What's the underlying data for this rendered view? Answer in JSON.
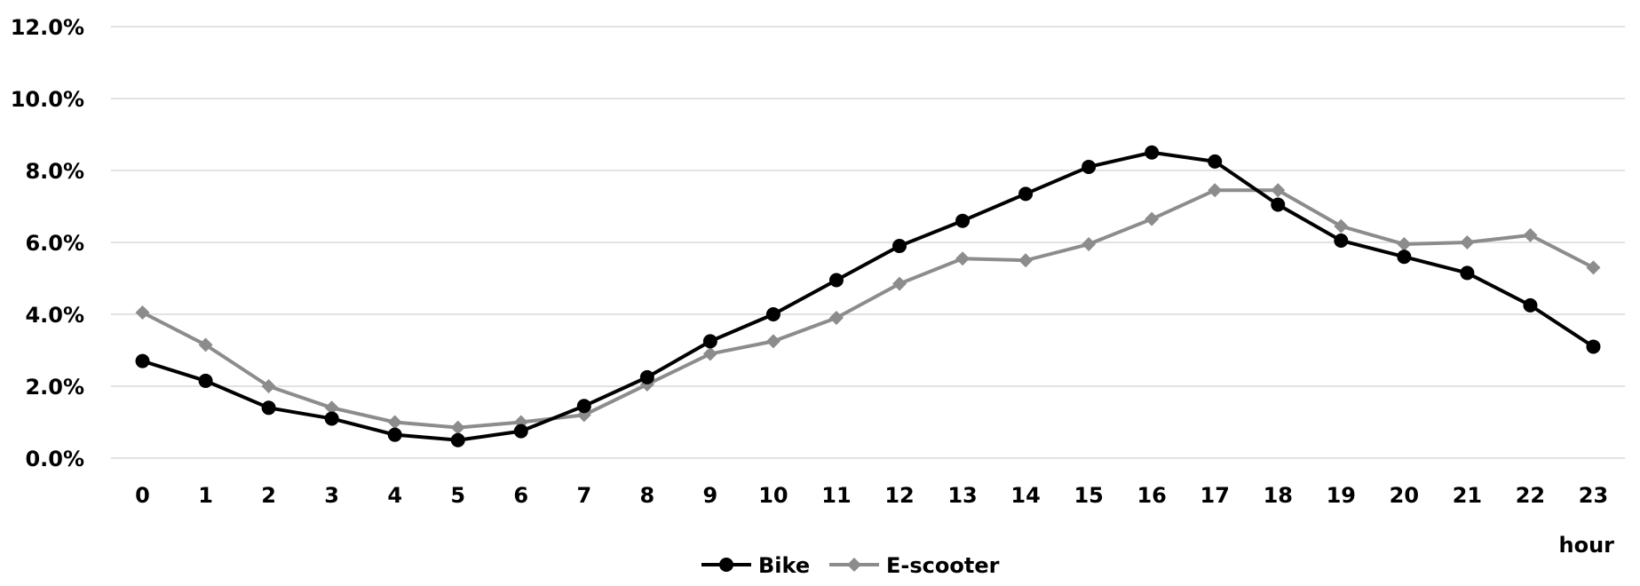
{
  "chart_data": {
    "type": "line",
    "title": "",
    "xlabel": "hour",
    "ylabel": "",
    "categories": [
      "0",
      "1",
      "2",
      "3",
      "4",
      "5",
      "6",
      "7",
      "8",
      "9",
      "10",
      "11",
      "12",
      "13",
      "14",
      "15",
      "16",
      "17",
      "18",
      "19",
      "20",
      "21",
      "22",
      "23"
    ],
    "y_ticks": [
      "0.0%",
      "2.0%",
      "4.0%",
      "6.0%",
      "8.0%",
      "10.0%",
      "12.0%"
    ],
    "ylim": [
      0,
      12
    ],
    "grid": true,
    "legend_position": "bottom",
    "series": [
      {
        "name": "Bike",
        "color": "#000000",
        "marker": "circle",
        "values": [
          2.7,
          2.15,
          1.4,
          1.1,
          0.65,
          0.5,
          0.75,
          1.45,
          2.25,
          3.25,
          4.0,
          4.95,
          5.9,
          6.6,
          7.35,
          8.1,
          8.5,
          8.25,
          7.05,
          6.05,
          5.6,
          5.15,
          4.25,
          3.1
        ]
      },
      {
        "name": "E-scooter",
        "color": "#8c8c8c",
        "marker": "diamond",
        "values": [
          4.05,
          3.15,
          2.0,
          1.4,
          1.0,
          0.85,
          1.0,
          1.2,
          2.05,
          2.9,
          3.25,
          3.9,
          4.85,
          5.55,
          5.5,
          5.95,
          6.65,
          7.45,
          7.45,
          6.45,
          5.95,
          6.0,
          6.2,
          5.3
        ]
      }
    ]
  }
}
